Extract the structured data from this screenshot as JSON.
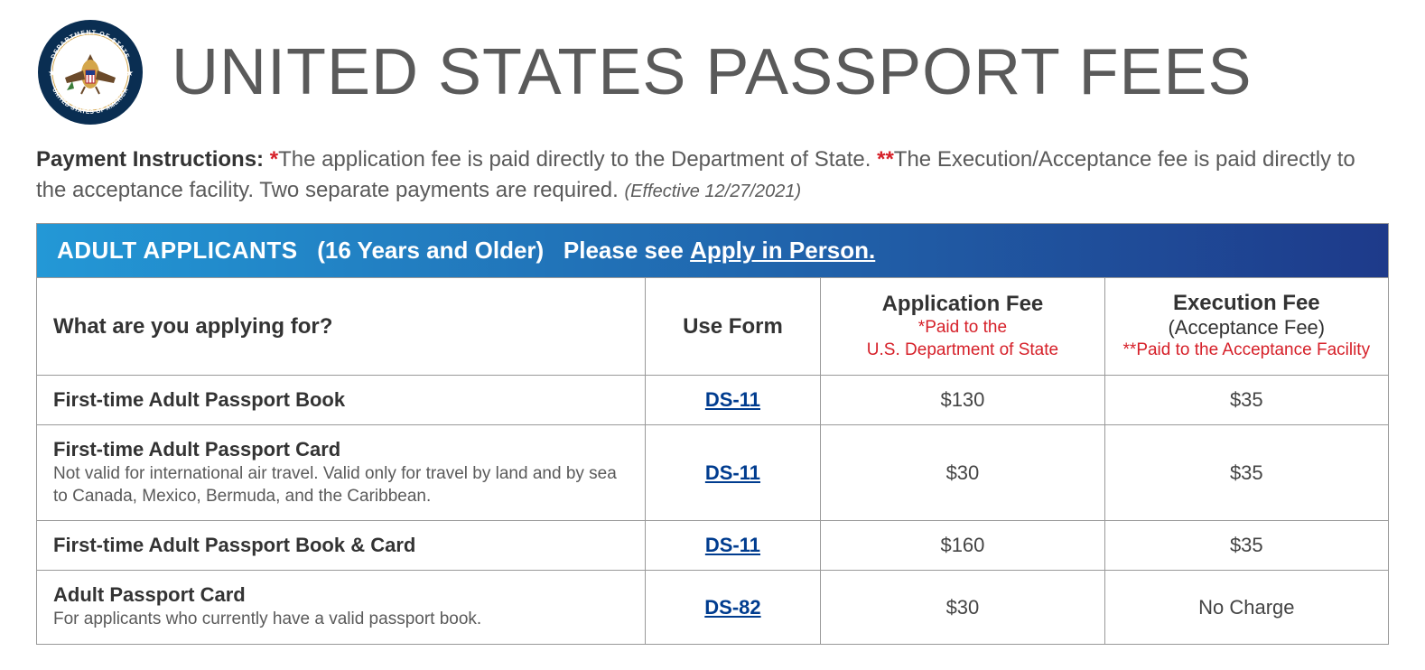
{
  "title": "UNITED STATES PASSPORT FEES",
  "seal": {
    "outer_ring_color": "#0a2e52",
    "gold": "#d4a64a",
    "brown": "#6b4a2a",
    "white": "#ffffff",
    "ring_text_top": "DEPARTMENT OF STATE",
    "ring_text_bottom": "UNITED STATES OF AMERICA"
  },
  "instructions": {
    "label": "Payment Instructions: ",
    "star1": "*",
    "text1": "The application fee is paid directly to the Department of State. ",
    "star2": "**",
    "text2": "The Execution/Acceptance fee is paid directly to the acceptance facility. Two separate payments are required. ",
    "effective": "(Effective 12/27/2021)"
  },
  "section": {
    "title": "ADULT APPLICANTS",
    "subtitle": "(16 Years and Older)",
    "note_prefix": "Please see ",
    "note_link": "Apply in Person."
  },
  "columns": {
    "what": "What are you applying for?",
    "form": "Use Form",
    "appfee_main": "Application Fee",
    "appfee_red1": "*Paid to the",
    "appfee_red2": "U.S. Department of State",
    "execfee_main": "Execution Fee",
    "execfee_sub": "(Acceptance Fee)",
    "execfee_red": "**Paid to the Acceptance Facility"
  },
  "rows": [
    {
      "title": "First-time Adult Passport Book",
      "sub": "",
      "form": "DS-11",
      "appfee": "$130",
      "execfee": "$35"
    },
    {
      "title": "First-time Adult Passport Card",
      "sub": "Not valid for international air travel. Valid only for travel by land and by sea to Canada, Mexico, Bermuda, and the Caribbean.",
      "form": "DS-11",
      "appfee": "$30",
      "execfee": "$35"
    },
    {
      "title": "First-time Adult Passport Book & Card",
      "sub": "",
      "form": "DS-11",
      "appfee": "$160",
      "execfee": "$35"
    },
    {
      "title": "Adult Passport Card",
      "sub": "For applicants who currently have a valid passport book.",
      "form": "DS-82",
      "appfee": "$30",
      "execfee": "No Charge"
    }
  ]
}
